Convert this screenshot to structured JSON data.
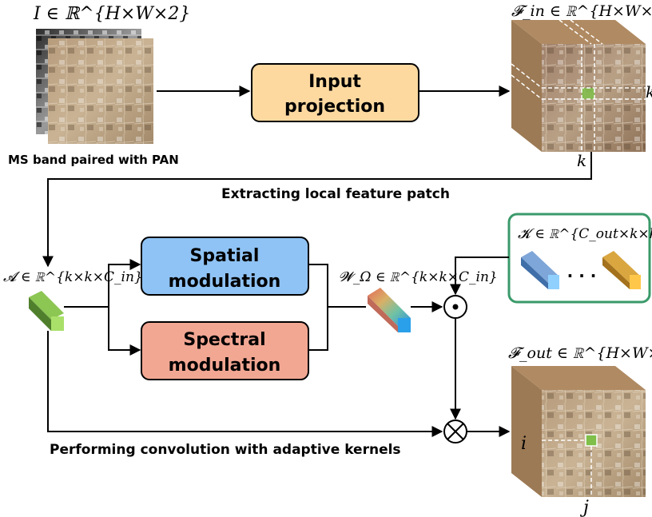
{
  "labels": {
    "input_eq": "I ∈ ℝ^{H×W×2}",
    "input_caption": "MS band paired with PAN",
    "fin_eq": "𝓕_in ∈ ℝ^{H×W×C_in}",
    "k_right": "k",
    "k_bottom": "k",
    "extract_caption": "Extracting local feature patch",
    "a_eq": "𝓐 ∈ ℝ^{k×k×C_in}",
    "w_eq": "𝓦_Ω ∈ ℝ^{k×k×C_in}",
    "k_eq": "𝓚 ∈ ℝ^{C_out×k×k×C_in}",
    "dots": "· · ·",
    "fout_eq": "𝓕_out ∈ ℝ^{H×W×C_out}",
    "i_label": "i",
    "j_label": "j",
    "conv_caption": "Performing convolution with adaptive kernels",
    "odot": "⊙",
    "otimes": "⊗"
  },
  "boxes": {
    "input_projection": [
      "Input",
      "projection"
    ],
    "spatial_modulation": [
      "Spatial",
      "modulation"
    ],
    "spectral_modulation": [
      "Spectral",
      "modulation"
    ]
  },
  "colors": {
    "input_box": "#fdd9a0",
    "spatial_box": "#8fc3f5",
    "spectral_box": "#f2a793",
    "kernel_frame": "#3a9a6a",
    "patch_green": "#6b9e3c",
    "kernel_blue": "#5b86c2",
    "kernel_orange": "#d19a2a"
  }
}
